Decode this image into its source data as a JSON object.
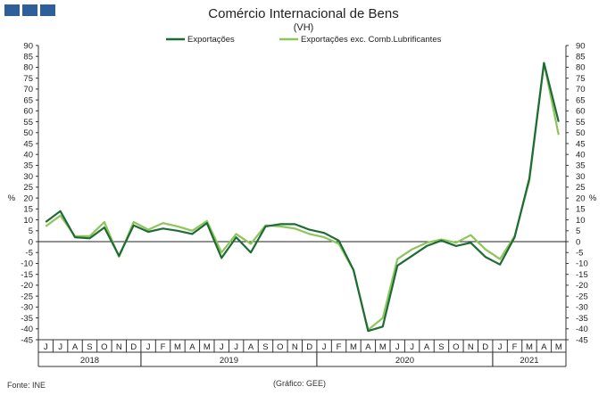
{
  "logo": {
    "icon": "gee-logo-icon",
    "color": "#2e5f9a"
  },
  "footer": {
    "source": "Fonte: INE",
    "chart_credit": "(Gráfico: GEE)"
  },
  "chart_data": {
    "type": "line",
    "title": "Comércio Internacional de Bens",
    "subtitle": "(VH)",
    "ylabel_left": "%",
    "ylabel_right": "%",
    "ylim": [
      -45,
      90
    ],
    "yticks": [
      -45,
      -40,
      -35,
      -30,
      -25,
      -20,
      -15,
      -10,
      -5,
      0,
      5,
      10,
      15,
      20,
      25,
      30,
      35,
      40,
      45,
      50,
      55,
      60,
      65,
      70,
      75,
      80,
      85,
      90
    ],
    "grid": false,
    "legend": "top",
    "categories": [
      "J",
      "J",
      "A",
      "S",
      "O",
      "N",
      "D",
      "J",
      "F",
      "M",
      "A",
      "M",
      "J",
      "J",
      "A",
      "S",
      "O",
      "N",
      "D",
      "J",
      "F",
      "M",
      "A",
      "M",
      "J",
      "J",
      "A",
      "S",
      "O",
      "N",
      "D",
      "J",
      "F",
      "M",
      "A",
      "M"
    ],
    "years": [
      {
        "label": "2018",
        "start": 0,
        "end": 6
      },
      {
        "label": "2019",
        "start": 7,
        "end": 18
      },
      {
        "label": "2020",
        "start": 19,
        "end": 30
      },
      {
        "label": "2021",
        "start": 31,
        "end": 35
      }
    ],
    "series": [
      {
        "name": "Exportações",
        "color": "#1f6b35",
        "values": [
          9,
          14,
          2,
          1.5,
          6.5,
          -6.5,
          7.5,
          4.5,
          6,
          5,
          3.5,
          8.5,
          -7.5,
          2,
          -5,
          7,
          8,
          8,
          5.5,
          4,
          0.5,
          -13,
          -41,
          -39,
          -11,
          -6.5,
          -2,
          0.5,
          -2,
          -0.5,
          -7,
          -10.5,
          2,
          29,
          82,
          55
        ]
      },
      {
        "name": "Exportações exc. Comb.Lubrificantes",
        "color": "#8cc65a",
        "values": [
          7,
          12,
          2.5,
          2.5,
          9,
          -7,
          9,
          5.5,
          8.5,
          7,
          5,
          9.5,
          -5,
          3.5,
          -1,
          7.5,
          7,
          6,
          3.5,
          2,
          -1,
          -13,
          -40.5,
          -35,
          -8,
          -3.5,
          -0.5,
          1,
          -0.5,
          3,
          -3.5,
          -8,
          2.5,
          28,
          82,
          49
        ]
      }
    ]
  }
}
